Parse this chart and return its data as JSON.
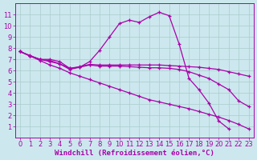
{
  "background_color": "#cce8ee",
  "line_color": "#aa00aa",
  "grid_color": "#aacccc",
  "xlabel": "Windchill (Refroidissement éolien,°C)",
  "xlabel_fontsize": 6.5,
  "tick_fontsize": 6,
  "xlim": [
    -0.5,
    23.5
  ],
  "ylim": [
    0,
    12
  ],
  "yticks": [
    1,
    2,
    3,
    4,
    5,
    6,
    7,
    8,
    9,
    10,
    11
  ],
  "xticks": [
    0,
    1,
    2,
    3,
    4,
    5,
    6,
    7,
    8,
    9,
    10,
    11,
    12,
    13,
    14,
    15,
    16,
    17,
    18,
    19,
    20,
    21,
    22,
    23
  ],
  "line1_x": [
    0,
    1,
    2,
    3,
    4,
    5,
    6,
    7,
    8,
    9,
    10,
    11,
    12,
    13,
    14,
    15,
    16,
    17,
    18,
    19,
    20,
    21
  ],
  "line1_y": [
    7.7,
    7.3,
    7.0,
    7.0,
    6.8,
    6.2,
    6.3,
    6.8,
    7.8,
    9.0,
    10.2,
    10.5,
    10.3,
    10.8,
    11.2,
    10.9,
    8.4,
    5.3,
    4.3,
    3.1,
    1.5,
    0.8
  ],
  "line2_x": [
    0,
    1,
    2,
    3,
    4,
    5,
    6,
    7,
    8,
    9,
    10,
    11,
    12,
    13,
    14,
    15,
    16,
    17,
    18,
    19,
    20,
    21,
    22,
    23
  ],
  "line2_y": [
    7.7,
    7.3,
    7.0,
    6.9,
    6.6,
    6.2,
    6.35,
    6.55,
    6.5,
    6.5,
    6.5,
    6.5,
    6.5,
    6.5,
    6.5,
    6.45,
    6.4,
    6.35,
    6.3,
    6.2,
    6.1,
    5.9,
    5.7,
    5.5
  ],
  "line3_x": [
    0,
    1,
    2,
    3,
    4,
    5,
    6,
    7,
    8,
    9,
    10,
    11,
    12,
    13,
    14,
    15,
    16,
    17,
    18,
    19,
    20,
    21,
    22,
    23
  ],
  "line3_y": [
    7.7,
    7.35,
    7.0,
    6.8,
    6.6,
    6.1,
    6.3,
    6.5,
    6.4,
    6.4,
    6.4,
    6.35,
    6.3,
    6.25,
    6.25,
    6.2,
    6.1,
    5.9,
    5.6,
    5.3,
    4.8,
    4.3,
    3.3,
    2.8
  ],
  "line4_x": [
    0,
    1,
    2,
    3,
    4,
    5,
    6,
    7,
    8,
    9,
    10,
    11,
    12,
    13,
    14,
    15,
    16,
    17,
    18,
    19,
    20,
    21,
    22,
    23
  ],
  "line4_y": [
    7.7,
    7.3,
    6.9,
    6.5,
    6.2,
    5.8,
    5.5,
    5.2,
    4.9,
    4.6,
    4.3,
    4.0,
    3.7,
    3.4,
    3.2,
    3.0,
    2.8,
    2.6,
    2.35,
    2.1,
    1.85,
    1.55,
    1.2,
    0.8
  ]
}
